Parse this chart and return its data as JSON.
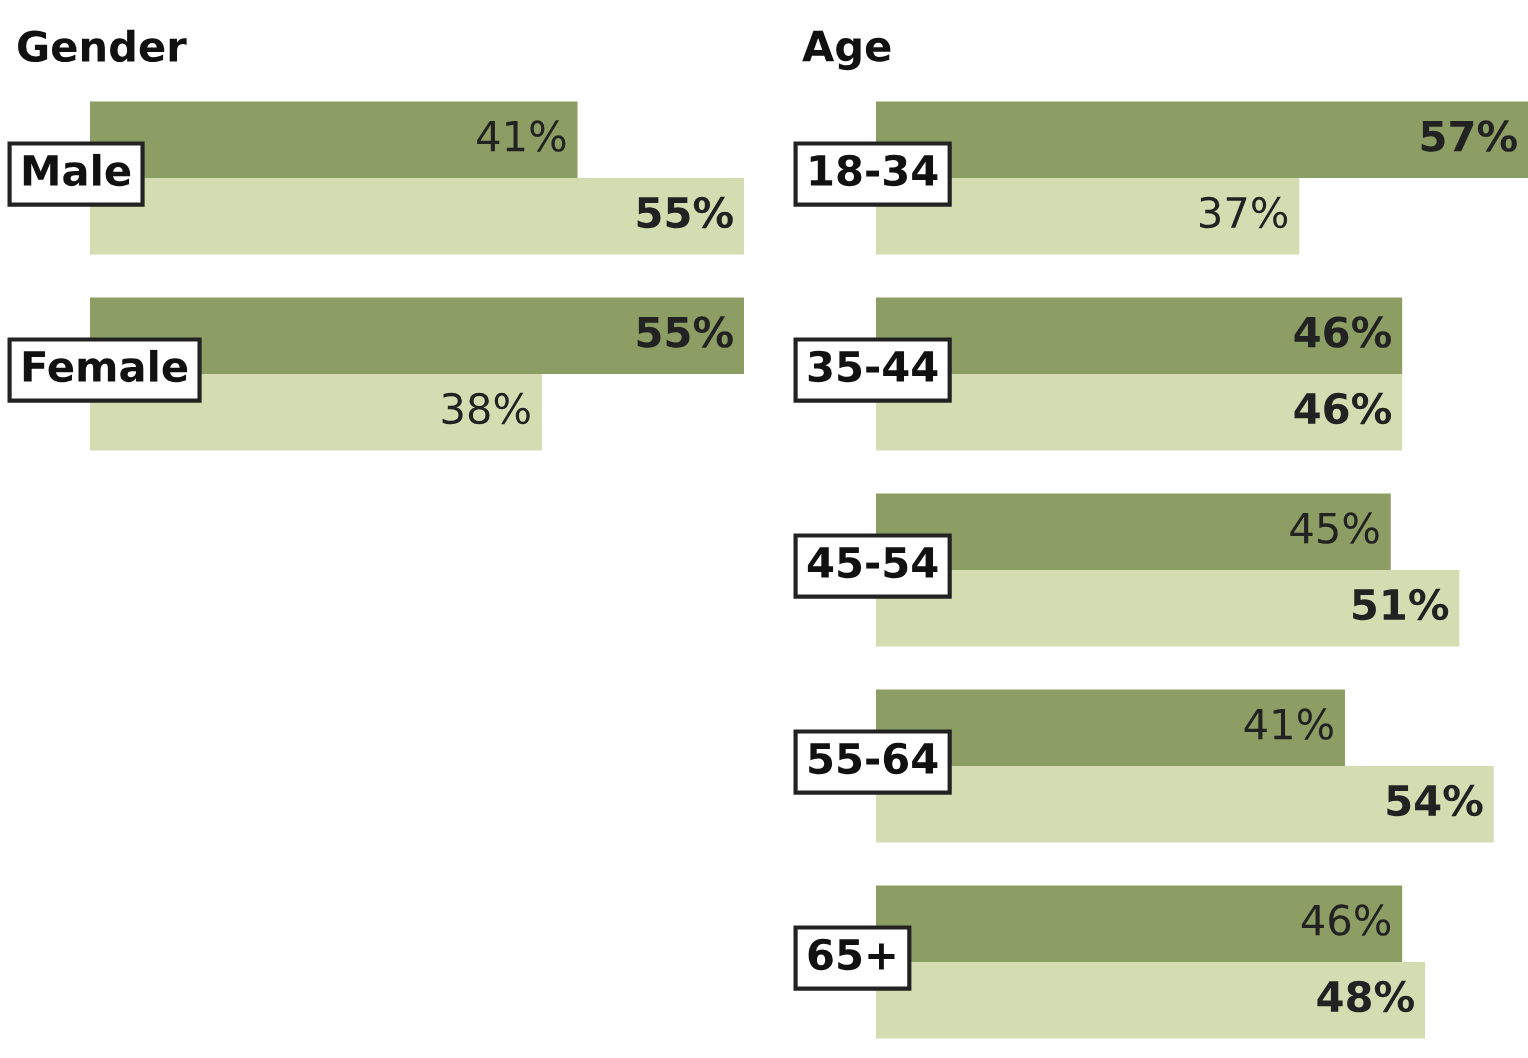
{
  "chart_data": [
    {
      "type": "bar",
      "orientation": "horizontal",
      "title": "Gender",
      "categories": [
        "Male",
        "Female"
      ],
      "series": [
        {
          "color": "#8d9e64",
          "values": [
            41,
            55
          ],
          "value_labels": [
            "41%",
            "55%"
          ]
        },
        {
          "color": "#d4ddb2",
          "values": [
            55,
            38
          ],
          "value_labels": [
            "55%",
            "38%"
          ]
        }
      ],
      "tick_labels": false
    },
    {
      "type": "bar",
      "orientation": "horizontal",
      "title": "Age",
      "categories": [
        "18-34",
        "35-44",
        "45-54",
        "55-64",
        "65+"
      ],
      "series": [
        {
          "color": "#8d9e64",
          "values": [
            57,
            46,
            45,
            41,
            46
          ],
          "value_labels": [
            "57%",
            "46%",
            "45%",
            "41%",
            "46%"
          ]
        },
        {
          "color": "#d4ddb2",
          "values": [
            37,
            46,
            51,
            54,
            48
          ],
          "value_labels": [
            "37%",
            "46%",
            "51%",
            "54%",
            "48%"
          ]
        }
      ],
      "tick_labels": false
    }
  ]
}
